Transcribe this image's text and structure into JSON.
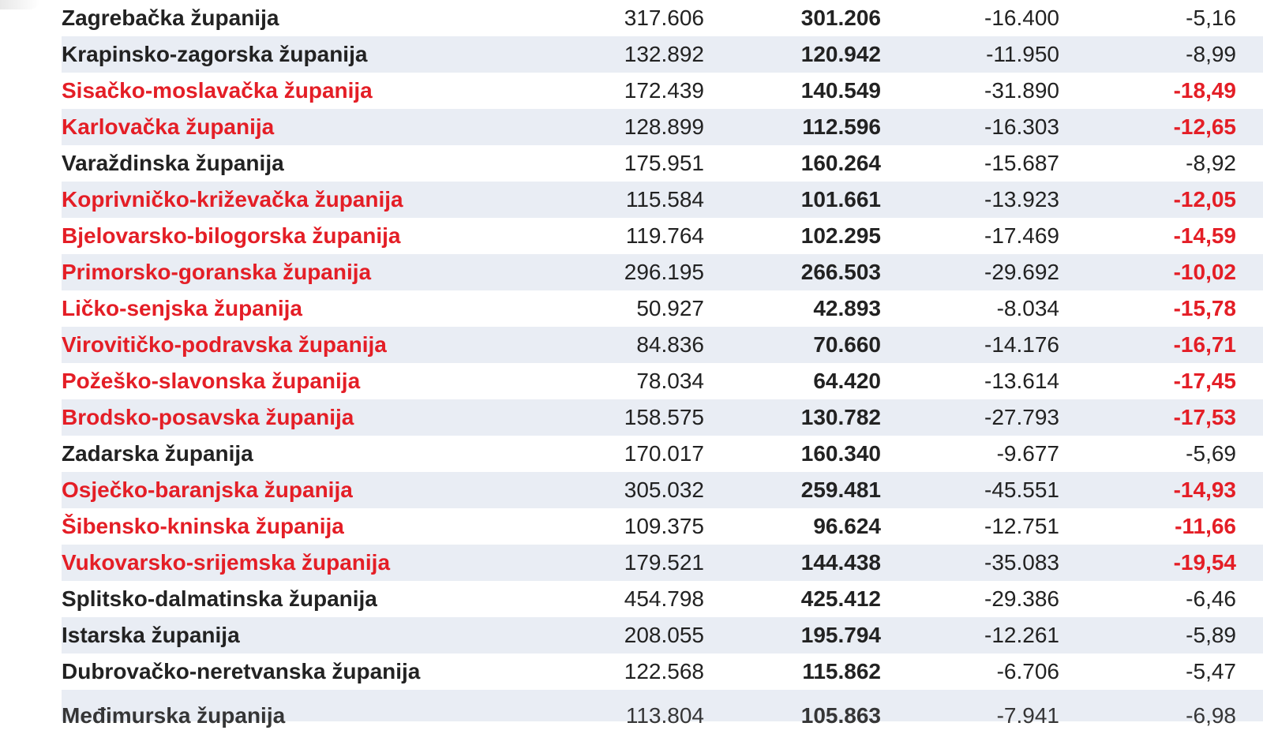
{
  "rows": [
    {
      "name": "Zagrebačka županija",
      "v1": "317.606",
      "v2": "301.206",
      "diff": "-16.400",
      "pct": "-5,16",
      "highlight": false
    },
    {
      "name": "Krapinsko-zagorska županija",
      "v1": "132.892",
      "v2": "120.942",
      "diff": "-11.950",
      "pct": "-8,99",
      "highlight": false
    },
    {
      "name": "Sisačko-moslavačka županija",
      "v1": "172.439",
      "v2": "140.549",
      "diff": "-31.890",
      "pct": "-18,49",
      "highlight": true
    },
    {
      "name": "Karlovačka županija",
      "v1": "128.899",
      "v2": "112.596",
      "diff": "-16.303",
      "pct": "-12,65",
      "highlight": true
    },
    {
      "name": "Varaždinska županija",
      "v1": "175.951",
      "v2": "160.264",
      "diff": "-15.687",
      "pct": "-8,92",
      "highlight": false
    },
    {
      "name": "Koprivničko-križevačka županija",
      "v1": "115.584",
      "v2": "101.661",
      "diff": "-13.923",
      "pct": "-12,05",
      "highlight": true
    },
    {
      "name": "Bjelovarsko-bilogorska županija",
      "v1": "119.764",
      "v2": "102.295",
      "diff": "-17.469",
      "pct": "-14,59",
      "highlight": true
    },
    {
      "name": "Primorsko-goranska županija",
      "v1": "296.195",
      "v2": "266.503",
      "diff": "-29.692",
      "pct": "-10,02",
      "highlight": true
    },
    {
      "name": "Ličko-senjska županija",
      "v1": "50.927",
      "v2": "42.893",
      "diff": "-8.034",
      "pct": "-15,78",
      "highlight": true
    },
    {
      "name": "Virovitičko-podravska županija",
      "v1": "84.836",
      "v2": "70.660",
      "diff": "-14.176",
      "pct": "-16,71",
      "highlight": true
    },
    {
      "name": "Požeško-slavonska županija",
      "v1": "78.034",
      "v2": "64.420",
      "diff": "-13.614",
      "pct": "-17,45",
      "highlight": true
    },
    {
      "name": "Brodsko-posavska županija",
      "v1": "158.575",
      "v2": "130.782",
      "diff": "-27.793",
      "pct": "-17,53",
      "highlight": true
    },
    {
      "name": "Zadarska županija",
      "v1": "170.017",
      "v2": "160.340",
      "diff": "-9.677",
      "pct": "-5,69",
      "highlight": false
    },
    {
      "name": "Osječko-baranjska županija",
      "v1": "305.032",
      "v2": "259.481",
      "diff": "-45.551",
      "pct": "-14,93",
      "highlight": true
    },
    {
      "name": "Šibensko-kninska županija",
      "v1": "109.375",
      "v2": "96.624",
      "diff": "-12.751",
      "pct": "-11,66",
      "highlight": true
    },
    {
      "name": "Vukovarsko-srijemska županija",
      "v1": "179.521",
      "v2": "144.438",
      "diff": "-35.083",
      "pct": "-19,54",
      "highlight": true
    },
    {
      "name": "Splitsko-dalmatinska županija",
      "v1": "454.798",
      "v2": "425.412",
      "diff": "-29.386",
      "pct": "-6,46",
      "highlight": false
    },
    {
      "name": "Istarska županija",
      "v1": "208.055",
      "v2": "195.794",
      "diff": "-12.261",
      "pct": "-5,89",
      "highlight": false
    },
    {
      "name": "Dubrovačko-neretvanska županija",
      "v1": "122.568",
      "v2": "115.862",
      "diff": "-6.706",
      "pct": "-5,47",
      "highlight": false
    },
    {
      "name": "Međimurska županija",
      "v1": "113.804",
      "v2": "105.863",
      "diff": "-7.941",
      "pct": "-6,98",
      "highlight": false
    }
  ],
  "colors": {
    "highlight_text": "#e41e26",
    "second_column_text": "#2a6db5",
    "alt_row_background": "#e9edf4"
  }
}
